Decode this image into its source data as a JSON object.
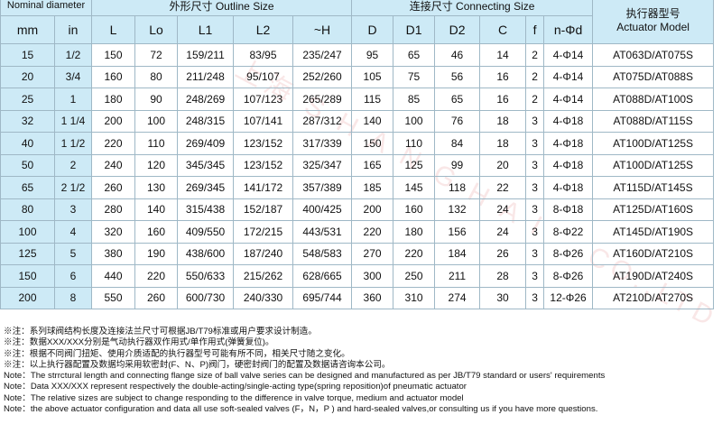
{
  "header": {
    "nominal_diameter": "Nominal diameter",
    "outline_size": "外形尺寸 Outline Size",
    "connecting_size": "连接尺寸 Connecting Size",
    "actuator_cn": "执行器型号",
    "actuator_en": "Actuator Model",
    "cols": [
      "mm",
      "in",
      "L",
      "Lo",
      "L1",
      "L2",
      "~H",
      "D",
      "D1",
      "D2",
      "C",
      "f",
      "n-Φd"
    ]
  },
  "rows": [
    [
      "15",
      "1/2",
      "150",
      "72",
      "159/211",
      "83/95",
      "235/247",
      "95",
      "65",
      "46",
      "14",
      "2",
      "4-Φ14",
      "AT063D/AT075S"
    ],
    [
      "20",
      "3/4",
      "160",
      "80",
      "211/248",
      "95/107",
      "252/260",
      "105",
      "75",
      "56",
      "16",
      "2",
      "4-Φ14",
      "AT075D/AT088S"
    ],
    [
      "25",
      "1",
      "180",
      "90",
      "248/269",
      "107/123",
      "265/289",
      "115",
      "85",
      "65",
      "16",
      "2",
      "4-Φ14",
      "AT088D/AT100S"
    ],
    [
      "32",
      "1 1/4",
      "200",
      "100",
      "248/315",
      "107/141",
      "287/312",
      "140",
      "100",
      "76",
      "18",
      "3",
      "4-Φ18",
      "AT088D/AT115S"
    ],
    [
      "40",
      "1 1/2",
      "220",
      "110",
      "269/409",
      "123/152",
      "317/339",
      "150",
      "110",
      "84",
      "18",
      "3",
      "4-Φ18",
      "AT100D/AT125S"
    ],
    [
      "50",
      "2",
      "240",
      "120",
      "345/345",
      "123/152",
      "325/347",
      "165",
      "125",
      "99",
      "20",
      "3",
      "4-Φ18",
      "AT100D/AT125S"
    ],
    [
      "65",
      "2 1/2",
      "260",
      "130",
      "269/345",
      "141/172",
      "357/389",
      "185",
      "145",
      "118",
      "22",
      "3",
      "4-Φ18",
      "AT115D/AT145S"
    ],
    [
      "80",
      "3",
      "280",
      "140",
      "315/438",
      "152/187",
      "400/425",
      "200",
      "160",
      "132",
      "24",
      "3",
      "8-Φ18",
      "AT125D/AT160S"
    ],
    [
      "100",
      "4",
      "320",
      "160",
      "409/550",
      "172/215",
      "443/531",
      "220",
      "180",
      "156",
      "24",
      "3",
      "8-Φ22",
      "AT145D/AT190S"
    ],
    [
      "125",
      "5",
      "380",
      "190",
      "438/600",
      "187/240",
      "548/583",
      "270",
      "220",
      "184",
      "26",
      "3",
      "8-Φ26",
      "AT160D/AT210S"
    ],
    [
      "150",
      "6",
      "440",
      "220",
      "550/633",
      "215/262",
      "628/665",
      "300",
      "250",
      "211",
      "28",
      "3",
      "8-Φ26",
      "AT190D/AT240S"
    ],
    [
      "200",
      "8",
      "550",
      "260",
      "600/730",
      "240/330",
      "695/744",
      "360",
      "310",
      "274",
      "30",
      "3",
      "12-Φ26",
      "AT210D/AT270S"
    ]
  ],
  "notes": [
    "※注：系列球阀结构长度及连接法兰尺寸可根据JB/T79标准或用户要求设计制造。",
    "※注：数据XXX/XXX分别是气动执行器双作用式/单作用式(弹簧复位)。",
    "※注：根据不同阀门扭矩、使用介质适配的执行器型号可能有所不同，相关尺寸随之变化。",
    "※注：以上执行器配置及数据均采用软密封(F、N、P)阀门，硬密封阀门的配置及数据请咨询本公司。",
    "Note：The strrctural length and connecting flange size of ball valve series can be designed and manufactured as per JB/T79 standard or users' requirements",
    "Note：Data XXX/XXX represent respectively the double-acting/single-acting type(spring reposition)of pneumatic actuator",
    "Note：The relative sizes are subject to change responding to the difference in valve torque, medium and actuator model",
    "Note：the above actuator  configuration and data  all use soft-sealed valves (F，N，P ) and  hard-sealed valves,or consulting us if you have more questions."
  ],
  "watermark": "SHANGHAI ... CO.,LTD"
}
